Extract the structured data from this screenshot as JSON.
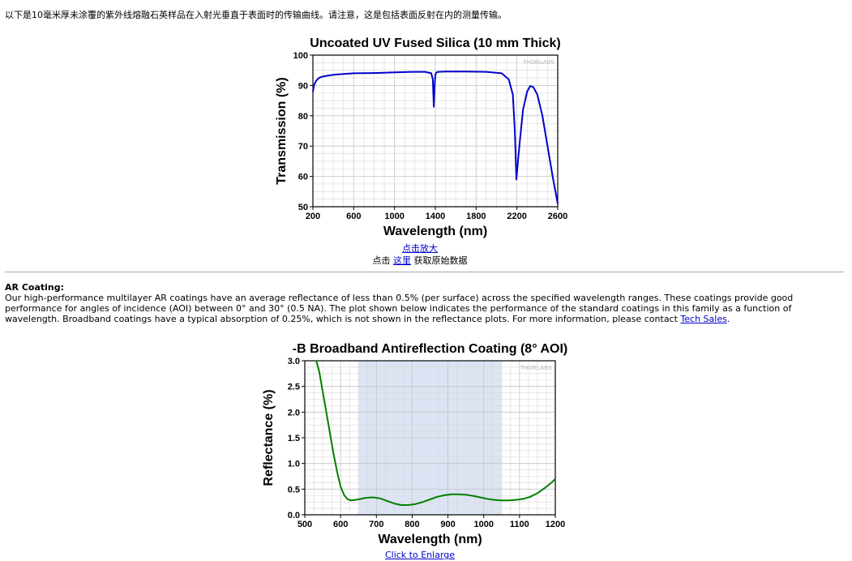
{
  "intro_text": "以下是10毫米厚未涂覆的紫外线熔融石英样品在入射光垂直于表面时的传输曲线。请注意，这是包括表面反射在内的测量传输。",
  "chart1_links": {
    "enlarge": "点击放大",
    "raw_prefix": "点击 ",
    "raw_link": "这里",
    "raw_suffix": " 获取原始数据"
  },
  "ar_section": {
    "heading": "AR Coating:",
    "body": "Our high-performance multilayer AR coatings have an average reflectance of less than 0.5% (per surface) across the specified wavelength ranges. These coatings provide good performance for angles of incidence (AOI) between 0° and 30° (0.5 NA). The plot shown below indicates the performance of the standard coatings in this family as a function of wavelength. Broadband coatings have a typical absorption of 0.25%, which is not shown in the reflectance plots. For more information, please contact ",
    "link": "Tech Sales",
    "end": "."
  },
  "chart2_links": {
    "enlarge": "Click to Enlarge"
  },
  "chart_data": [
    {
      "type": "line",
      "title": "Uncoated UV Fused Silica (10 mm Thick)",
      "xlabel": "Wavelength (nm)",
      "ylabel": "Transmission (%)",
      "xlim": [
        200,
        2600
      ],
      "ylim": [
        50,
        100
      ],
      "xticks": [
        200,
        600,
        1000,
        1400,
        1800,
        2200,
        2600
      ],
      "yticks": [
        50,
        60,
        70,
        80,
        90,
        100
      ],
      "grid": true,
      "watermark": "THORLABS",
      "color": "#0000cc",
      "series": [
        {
          "x": [
            200,
            210,
            230,
            260,
            300,
            400,
            500,
            600,
            800,
            1000,
            1200,
            1300,
            1360,
            1375,
            1385,
            1392,
            1400,
            1410,
            1430,
            1500,
            1700,
            1900,
            2050,
            2120,
            2160,
            2180,
            2195,
            2205,
            2215,
            2230,
            2260,
            2300,
            2330,
            2360,
            2400,
            2450,
            2500,
            2550,
            2600
          ],
          "y": [
            88,
            90,
            91.5,
            92.5,
            93,
            93.5,
            93.8,
            94,
            94.1,
            94.3,
            94.5,
            94.5,
            94,
            92,
            83,
            89,
            93.5,
            94.3,
            94.5,
            94.6,
            94.6,
            94.5,
            94,
            92,
            87,
            75,
            59,
            63,
            67,
            72,
            82,
            88,
            89.8,
            89.5,
            87,
            80,
            70,
            60,
            51
          ]
        }
      ]
    },
    {
      "type": "line",
      "title": "-B Broadband Antireflection Coating (8° AOI)",
      "xlabel": "Wavelength (nm)",
      "ylabel": "Reflectance (%)",
      "xlim": [
        500,
        1200
      ],
      "ylim": [
        0,
        3.0
      ],
      "xticks": [
        500,
        600,
        700,
        800,
        900,
        1000,
        1100,
        1200
      ],
      "yticks": [
        0.0,
        0.5,
        1.0,
        1.5,
        2.0,
        2.5,
        3.0
      ],
      "yticklabels": [
        "0.0",
        "0.5",
        "1.0",
        "1.5",
        "2.0",
        "2.5",
        "3.0"
      ],
      "grid": true,
      "watermark": "THORLABS",
      "shaded_range": [
        650,
        1050
      ],
      "shade_color": "#dce4f4",
      "color": "#008000",
      "series": [
        {
          "x": [
            532,
            540,
            550,
            560,
            570,
            580,
            590,
            600,
            610,
            620,
            630,
            640,
            650,
            670,
            690,
            710,
            730,
            750,
            770,
            790,
            810,
            830,
            850,
            870,
            890,
            910,
            930,
            950,
            970,
            990,
            1010,
            1030,
            1050,
            1070,
            1090,
            1110,
            1130,
            1150,
            1170,
            1190,
            1200
          ],
          "y": [
            3.0,
            2.8,
            2.4,
            2.0,
            1.6,
            1.2,
            0.85,
            0.55,
            0.38,
            0.3,
            0.28,
            0.29,
            0.3,
            0.33,
            0.34,
            0.32,
            0.27,
            0.22,
            0.19,
            0.19,
            0.21,
            0.25,
            0.3,
            0.35,
            0.38,
            0.4,
            0.4,
            0.39,
            0.37,
            0.34,
            0.31,
            0.29,
            0.28,
            0.28,
            0.29,
            0.31,
            0.35,
            0.42,
            0.52,
            0.63,
            0.7
          ]
        }
      ]
    }
  ]
}
